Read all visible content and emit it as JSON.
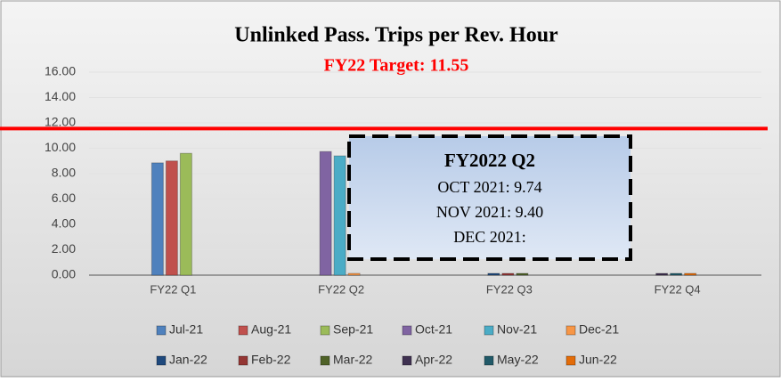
{
  "chart_data": {
    "type": "bar",
    "title": "Unlinked Pass. Trips per Rev. Hour",
    "target": {
      "label": "FY22 Target: 11.55",
      "value": 11.55,
      "color": "#ff0000"
    },
    "categories": [
      "FY22 Q1",
      "FY22 Q2",
      "FY22 Q3",
      "FY22 Q4"
    ],
    "series": [
      {
        "name": "Jul-21",
        "color": "#4f81bd",
        "values": [
          8.85,
          null,
          null,
          null
        ]
      },
      {
        "name": "Aug-21",
        "color": "#c0504d",
        "values": [
          9.0,
          null,
          null,
          null
        ]
      },
      {
        "name": "Sep-21",
        "color": "#9bbb59",
        "values": [
          9.6,
          null,
          null,
          null
        ]
      },
      {
        "name": "Oct-21",
        "color": "#8064a2",
        "values": [
          null,
          9.74,
          null,
          null
        ]
      },
      {
        "name": "Nov-21",
        "color": "#4bacc6",
        "values": [
          null,
          9.4,
          null,
          null
        ]
      },
      {
        "name": "Dec-21",
        "color": "#f79646",
        "values": [
          null,
          0,
          null,
          null
        ]
      },
      {
        "name": "Jan-22",
        "color": "#1f497d",
        "values": [
          null,
          null,
          0,
          null
        ]
      },
      {
        "name": "Feb-22",
        "color": "#943634",
        "values": [
          null,
          null,
          0,
          null
        ]
      },
      {
        "name": "Mar-22",
        "color": "#4f6228",
        "values": [
          null,
          null,
          0,
          null
        ]
      },
      {
        "name": "Apr-22",
        "color": "#3f3151",
        "values": [
          null,
          null,
          null,
          0
        ]
      },
      {
        "name": "May-22",
        "color": "#215968",
        "values": [
          null,
          null,
          null,
          0
        ]
      },
      {
        "name": "Jun-22",
        "color": "#e36c09",
        "values": [
          null,
          null,
          null,
          0
        ]
      }
    ],
    "ylim": [
      0,
      16
    ],
    "yticks": [
      {
        "value": 0,
        "label": "0.00"
      },
      {
        "value": 2,
        "label": "2.00"
      },
      {
        "value": 4,
        "label": "4.00"
      },
      {
        "value": 6,
        "label": "6.00"
      },
      {
        "value": 8,
        "label": "8.00"
      },
      {
        "value": 10,
        "label": "10.00"
      },
      {
        "value": 12,
        "label": "12.00"
      },
      {
        "value": 14,
        "label": "14.00"
      },
      {
        "value": 16,
        "label": "16.00"
      }
    ],
    "grid": true,
    "annotation": {
      "title": "FY2022 Q2",
      "lines": [
        "OCT 2021: 9.74",
        "NOV 2021: 9.40",
        "DEC 2021:"
      ]
    }
  }
}
